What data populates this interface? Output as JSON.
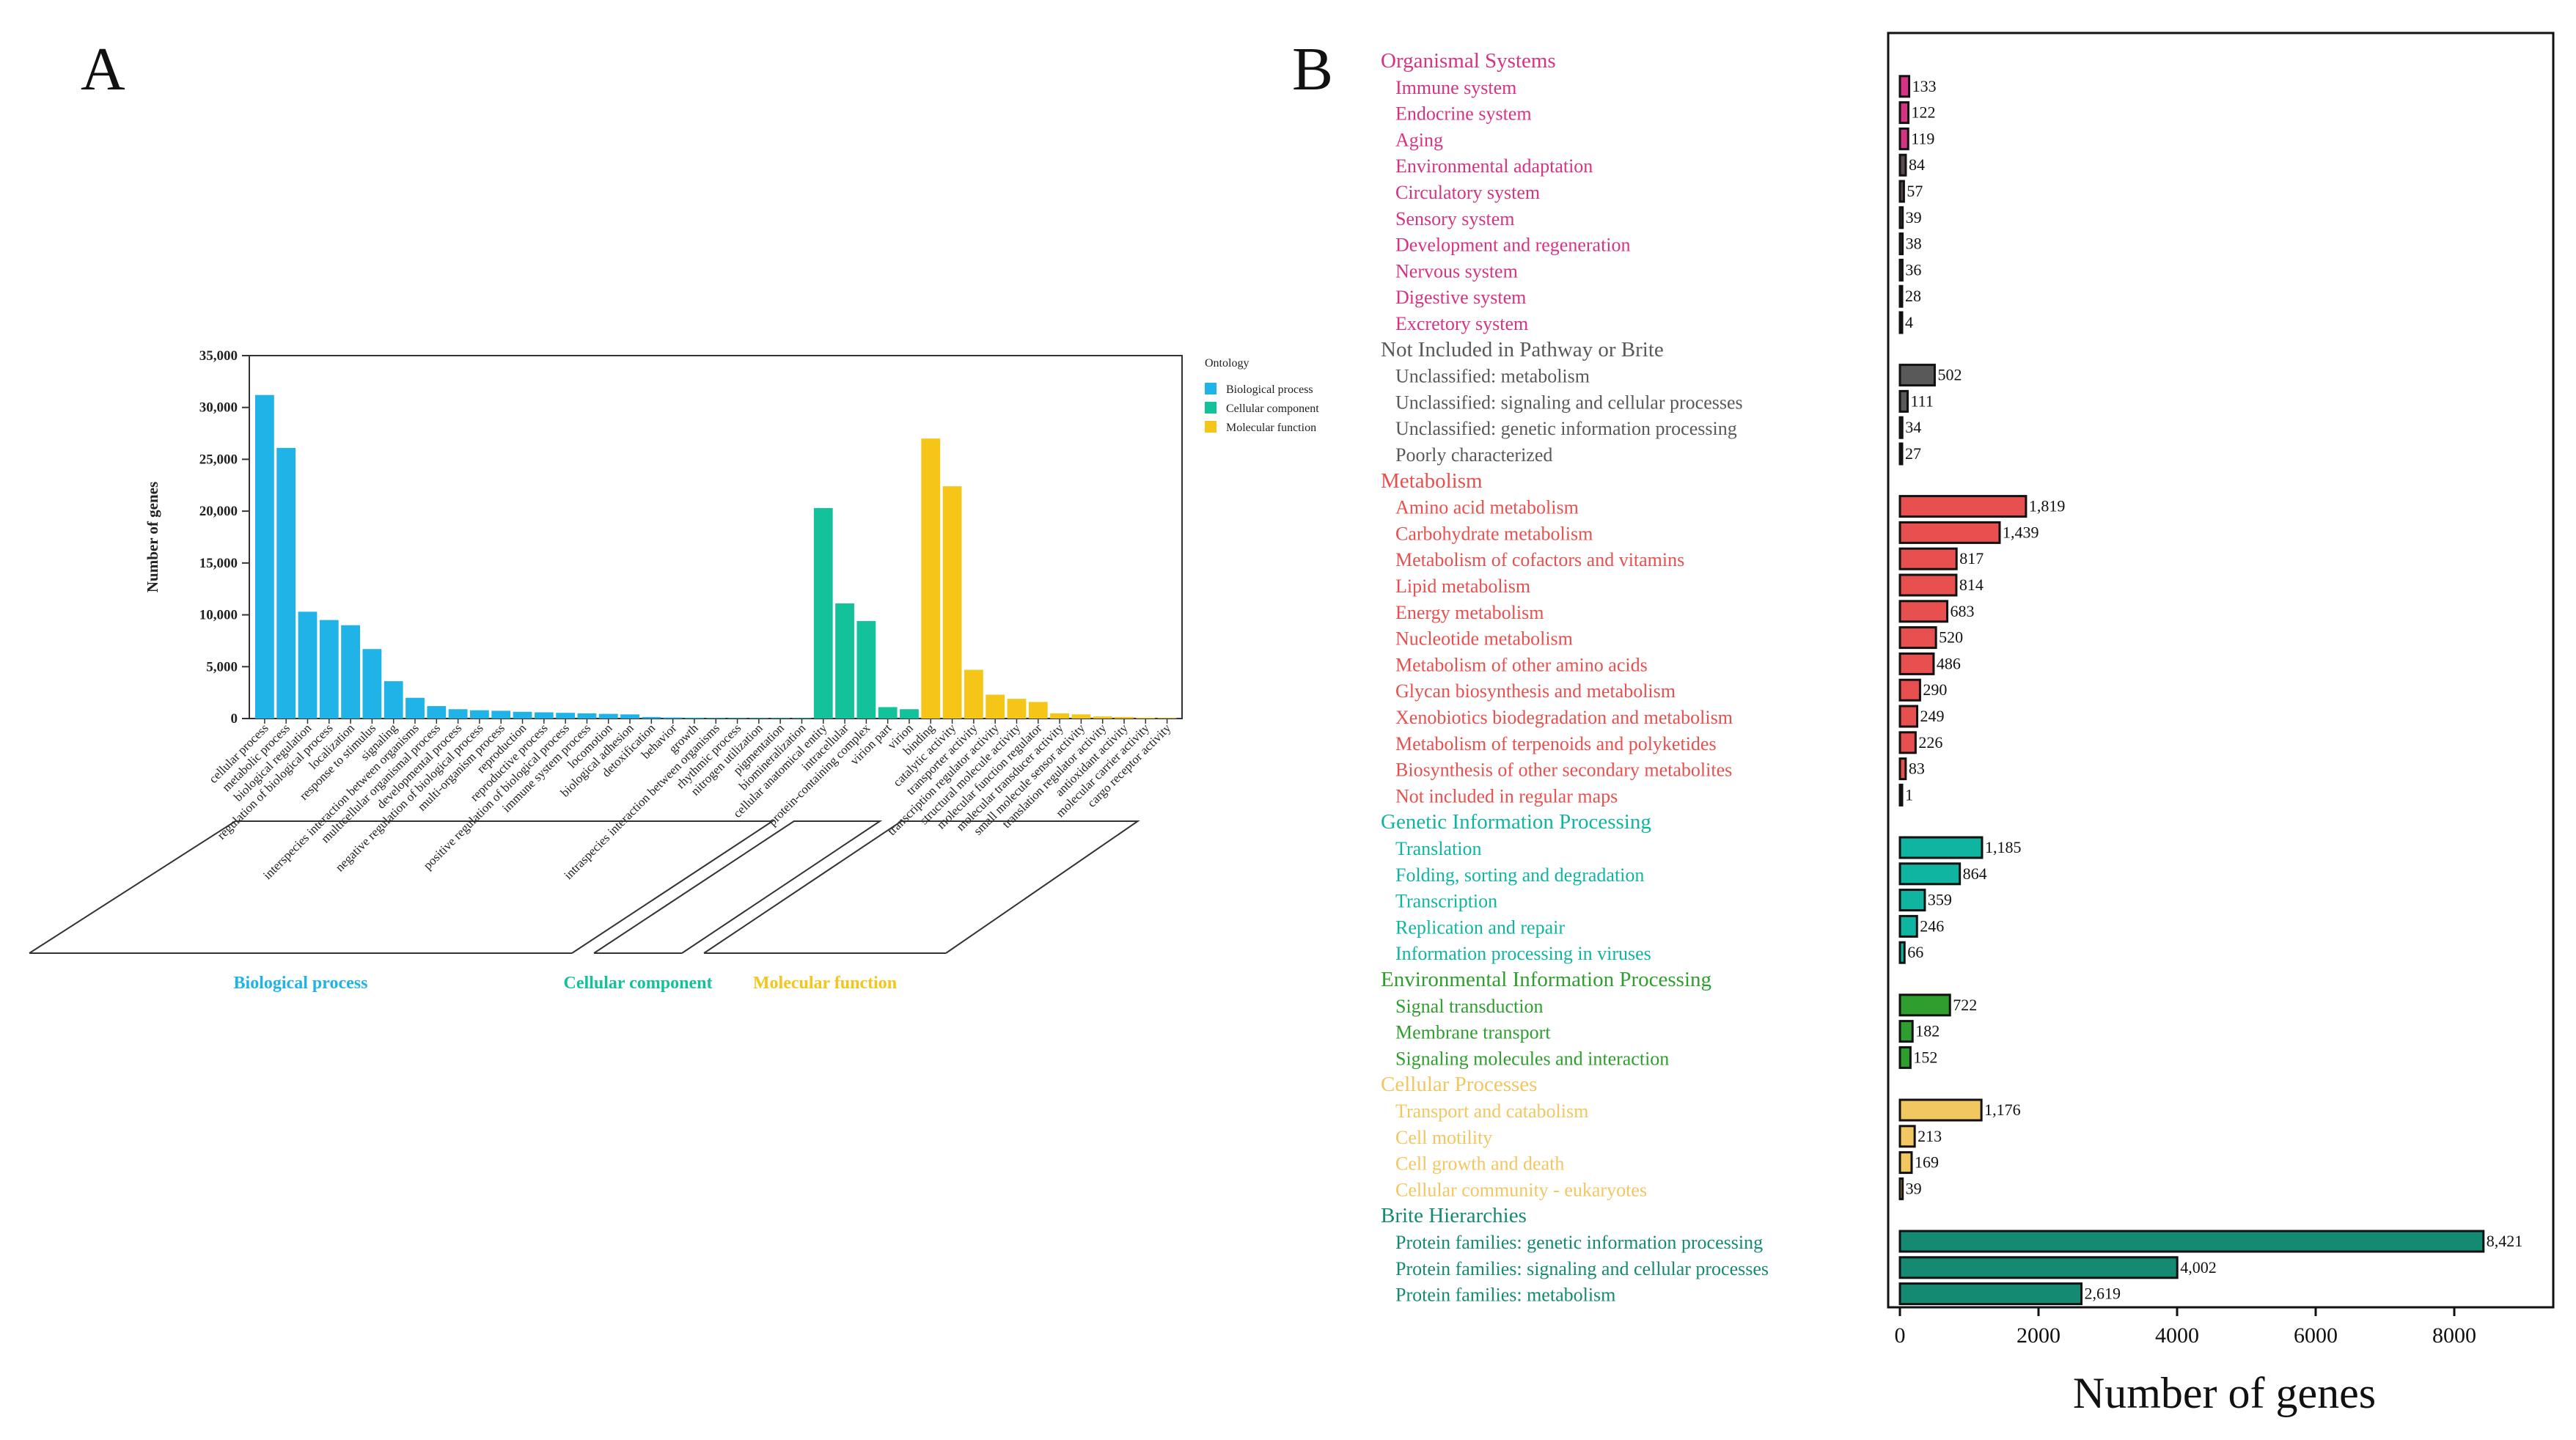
{
  "panel_a_letter": "A",
  "panel_b_letter": "B",
  "colors": {
    "biological_process": "#1FB3E8",
    "cellular_component": "#13C29A",
    "molecular_function": "#F5C518",
    "organismal": "#D63384",
    "not_included": "#595959",
    "metabolism": "#E8504F",
    "genetic": "#10B5A1",
    "environmental": "#2E9E2E",
    "cellular_processes": "#F2C661",
    "brite": "#148A72"
  },
  "chart_data": [
    {
      "type": "bar",
      "title": "",
      "xlabel": "",
      "ylabel": "Number of genes",
      "ylim": [
        0,
        35000
      ],
      "yticks": [
        "0",
        "5,000",
        "10,000",
        "15,000",
        "20,000",
        "25,000",
        "30,000",
        "35,000"
      ],
      "legend_title": "Ontology",
      "legend_position": "top-right",
      "series": [
        {
          "name": "Biological process",
          "color_key": "biological_process"
        },
        {
          "name": "Cellular component",
          "color_key": "cellular_component"
        },
        {
          "name": "Molecular function",
          "color_key": "molecular_function"
        }
      ],
      "group_labels": [
        {
          "name": "Biological process",
          "color_key": "biological_process"
        },
        {
          "name": "Cellular component",
          "color_key": "cellular_component"
        },
        {
          "name": "Molecular function",
          "color_key": "molecular_function"
        }
      ],
      "bars": [
        {
          "category": "cellular process",
          "group": 0,
          "value": 31200
        },
        {
          "category": "metabolic process",
          "group": 0,
          "value": 26100
        },
        {
          "category": "biological regulation",
          "group": 0,
          "value": 10300
        },
        {
          "category": "regulation of biological process",
          "group": 0,
          "value": 9500
        },
        {
          "category": "localization",
          "group": 0,
          "value": 9000
        },
        {
          "category": "response to stimulus",
          "group": 0,
          "value": 6700
        },
        {
          "category": "signaling",
          "group": 0,
          "value": 3600
        },
        {
          "category": "interspecies interaction between organisms",
          "group": 0,
          "value": 2000
        },
        {
          "category": "multicellular organismal process",
          "group": 0,
          "value": 1200
        },
        {
          "category": "developmental process",
          "group": 0,
          "value": 900
        },
        {
          "category": "negative regulation of biological process",
          "group": 0,
          "value": 800
        },
        {
          "category": "multi-organism process",
          "group": 0,
          "value": 750
        },
        {
          "category": "reproduction",
          "group": 0,
          "value": 650
        },
        {
          "category": "reproductive process",
          "group": 0,
          "value": 600
        },
        {
          "category": "positive regulation of biological process",
          "group": 0,
          "value": 550
        },
        {
          "category": "immune system process",
          "group": 0,
          "value": 500
        },
        {
          "category": "locomotion",
          "group": 0,
          "value": 450
        },
        {
          "category": "biological adhesion",
          "group": 0,
          "value": 400
        },
        {
          "category": "detoxification",
          "group": 0,
          "value": 150
        },
        {
          "category": "behavior",
          "group": 0,
          "value": 100
        },
        {
          "category": "growth",
          "group": 0,
          "value": 80
        },
        {
          "category": "intraspecies interaction between organisms",
          "group": 0,
          "value": 60
        },
        {
          "category": "rhythmic process",
          "group": 0,
          "value": 50
        },
        {
          "category": "nitrogen utilization",
          "group": 0,
          "value": 40
        },
        {
          "category": "pigmentation",
          "group": 0,
          "value": 30
        },
        {
          "category": "biomineralization",
          "group": 0,
          "value": 20
        },
        {
          "category": "cellular anatomical entity",
          "group": 1,
          "value": 20300
        },
        {
          "category": "intracellular",
          "group": 1,
          "value": 11100
        },
        {
          "category": "protein-containing complex",
          "group": 1,
          "value": 9400
        },
        {
          "category": "virion part",
          "group": 1,
          "value": 1100
        },
        {
          "category": "virion",
          "group": 1,
          "value": 900
        },
        {
          "category": "binding",
          "group": 2,
          "value": 27000
        },
        {
          "category": "catalytic activity",
          "group": 2,
          "value": 22400
        },
        {
          "category": "transporter activity",
          "group": 2,
          "value": 4700
        },
        {
          "category": "transcription regulator activity",
          "group": 2,
          "value": 2300
        },
        {
          "category": "structural molecule activity",
          "group": 2,
          "value": 1900
        },
        {
          "category": "molecular function regulator",
          "group": 2,
          "value": 1600
        },
        {
          "category": "molecular transducer activity",
          "group": 2,
          "value": 500
        },
        {
          "category": "small molecule sensor activity",
          "group": 2,
          "value": 400
        },
        {
          "category": "translation regulator activity",
          "group": 2,
          "value": 200
        },
        {
          "category": "antioxidant activity",
          "group": 2,
          "value": 150
        },
        {
          "category": "molecular carrier activity",
          "group": 2,
          "value": 80
        },
        {
          "category": "cargo receptor activity",
          "group": 2,
          "value": 40
        }
      ]
    },
    {
      "type": "bar",
      "orientation": "horizontal",
      "title": "",
      "xlabel": "Number of genes",
      "ylabel": "",
      "xlim": [
        0,
        9200
      ],
      "xticks": [
        0,
        2000,
        4000,
        6000,
        8000
      ],
      "groups": [
        {
          "name": "Organismal Systems",
          "color_key": "organismal",
          "items": [
            {
              "label": "Immune system",
              "value": 133,
              "display": "133"
            },
            {
              "label": "Endocrine system",
              "value": 122,
              "display": "122"
            },
            {
              "label": "Aging",
              "value": 119,
              "display": "119"
            },
            {
              "label": "Environmental adaptation",
              "value": 84,
              "display": "84"
            },
            {
              "label": "Circulatory system",
              "value": 57,
              "display": "57"
            },
            {
              "label": "Sensory system",
              "value": 39,
              "display": "39"
            },
            {
              "label": "Development and regeneration",
              "value": 38,
              "display": "38"
            },
            {
              "label": "Nervous system",
              "value": 36,
              "display": "36"
            },
            {
              "label": "Digestive system",
              "value": 28,
              "display": "28"
            },
            {
              "label": "Excretory system",
              "value": 4,
              "display": "4"
            }
          ]
        },
        {
          "name": "Not Included in Pathway or Brite",
          "color_key": "not_included",
          "items": [
            {
              "label": "Unclassified: metabolism",
              "value": 502,
              "display": "502"
            },
            {
              "label": "Unclassified: signaling and cellular processes",
              "value": 111,
              "display": "111"
            },
            {
              "label": "Unclassified: genetic information processing",
              "value": 34,
              "display": "34"
            },
            {
              "label": "Poorly characterized",
              "value": 27,
              "display": "27"
            }
          ]
        },
        {
          "name": "Metabolism",
          "color_key": "metabolism",
          "items": [
            {
              "label": "Amino acid metabolism",
              "value": 1819,
              "display": "1,819"
            },
            {
              "label": "Carbohydrate metabolism",
              "value": 1439,
              "display": "1,439"
            },
            {
              "label": "Metabolism of cofactors and vitamins",
              "value": 817,
              "display": "817"
            },
            {
              "label": "Lipid metabolism",
              "value": 814,
              "display": "814"
            },
            {
              "label": "Energy metabolism",
              "value": 683,
              "display": "683"
            },
            {
              "label": "Nucleotide metabolism",
              "value": 520,
              "display": "520"
            },
            {
              "label": "Metabolism of other amino acids",
              "value": 486,
              "display": "486"
            },
            {
              "label": "Glycan biosynthesis and metabolism",
              "value": 290,
              "display": "290"
            },
            {
              "label": "Xenobiotics biodegradation and metabolism",
              "value": 249,
              "display": "249"
            },
            {
              "label": "Metabolism of terpenoids and polyketides",
              "value": 226,
              "display": "226"
            },
            {
              "label": "Biosynthesis of other secondary metabolites",
              "value": 83,
              "display": "83"
            },
            {
              "label": "Not included in regular maps",
              "value": 1,
              "display": "1"
            }
          ]
        },
        {
          "name": "Genetic Information Processing",
          "color_key": "genetic",
          "items": [
            {
              "label": "Translation",
              "value": 1185,
              "display": "1,185"
            },
            {
              "label": "Folding, sorting and degradation",
              "value": 864,
              "display": "864"
            },
            {
              "label": "Transcription",
              "value": 359,
              "display": "359"
            },
            {
              "label": "Replication and repair",
              "value": 246,
              "display": "246"
            },
            {
              "label": "Information processing in viruses",
              "value": 66,
              "display": "66"
            }
          ]
        },
        {
          "name": "Environmental Information Processing",
          "color_key": "environmental",
          "items": [
            {
              "label": "Signal transduction",
              "value": 722,
              "display": "722"
            },
            {
              "label": "Membrane transport",
              "value": 182,
              "display": "182"
            },
            {
              "label": "Signaling molecules and interaction",
              "value": 152,
              "display": "152"
            }
          ]
        },
        {
          "name": "Cellular Processes",
          "color_key": "cellular_processes",
          "items": [
            {
              "label": "Transport and catabolism",
              "value": 1176,
              "display": "1,176"
            },
            {
              "label": "Cell motility",
              "value": 213,
              "display": "213"
            },
            {
              "label": "Cell growth and death",
              "value": 169,
              "display": "169"
            },
            {
              "label": "Cellular community - eukaryotes",
              "value": 39,
              "display": "39"
            }
          ]
        },
        {
          "name": "Brite Hierarchies",
          "color_key": "brite",
          "items": [
            {
              "label": "Protein families: genetic information processing",
              "value": 8421,
              "display": "8,421"
            },
            {
              "label": "Protein families: signaling and cellular processes",
              "value": 4002,
              "display": "4,002"
            },
            {
              "label": "Protein families: metabolism",
              "value": 2619,
              "display": "2,619"
            }
          ]
        }
      ]
    }
  ]
}
